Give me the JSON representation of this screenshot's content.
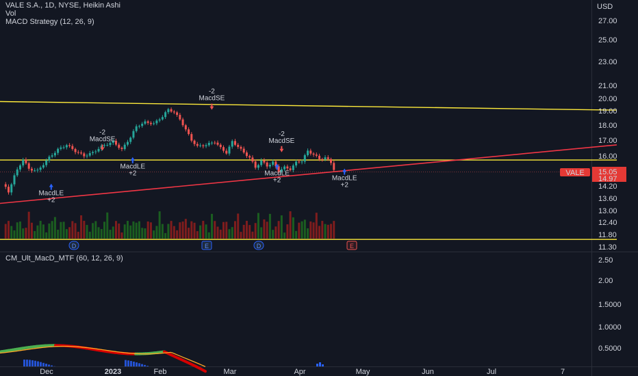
{
  "header": {
    "symbol_line": "VALE S.A., 1D, NYSE, Heikin Ashi",
    "vol_label": "Vol",
    "strategy_label": "MACD Strategy (12, 26, 9)",
    "indicator_label": "CM_Ult_MacD_MTF (60, 12, 26, 9)",
    "currency": "USD"
  },
  "colors": {
    "background": "#131722",
    "up": "#26a69a",
    "down": "#ef5350",
    "trend_yellow": "#ffeb3b",
    "trend_red": "#f23645",
    "vol_up": "#1b5e20",
    "vol_down": "#7f1d1d",
    "macd_up": "#4caf50",
    "macd_down": "#d50000",
    "signal": "#ffa726"
  },
  "chart_data": {
    "type": "candlestick",
    "price_axis_ticks": [
      "27.00",
      "25.00",
      "23.00",
      "21.00",
      "20.00",
      "19.00",
      "18.00",
      "17.00",
      "16.00",
      "14.20",
      "13.60",
      "13.00",
      "12.40",
      "11.80",
      "11.30"
    ],
    "price_labels": {
      "symbol": "VALE",
      "last": "15.05",
      "prev": "14.97"
    },
    "time_axis_ticks": [
      "Dec",
      "2023",
      "Feb",
      "Mar",
      "Apr",
      "May",
      "Jun",
      "Jul",
      "7"
    ],
    "event_markers": [
      "D",
      "E",
      "D",
      "E"
    ],
    "signals": [
      {
        "type": "long",
        "label": "MacdLE",
        "qty": "+2",
        "date": "2022-11-16",
        "price": 14.5
      },
      {
        "type": "short",
        "label": "MacdSE",
        "qty": "-2",
        "date": "2022-12-08",
        "price": 16.5
      },
      {
        "type": "long",
        "label": "MacdLE",
        "qty": "+2",
        "date": "2022-12-21",
        "price": 16.1
      },
      {
        "type": "short",
        "label": "MacdSE",
        "qty": "-2",
        "date": "2023-01-24",
        "price": 19.3
      },
      {
        "type": "long",
        "label": "MacdLE",
        "qty": "+2",
        "date": "2023-02-21",
        "price": 15.7
      },
      {
        "type": "short",
        "label": "MacdSE",
        "qty": "-2",
        "date": "2023-02-23",
        "price": 16.4
      },
      {
        "type": "long",
        "label": "MacdLE",
        "qty": "+2",
        "date": "2023-03-22",
        "price": 15.4
      }
    ],
    "trendlines": [
      {
        "color": "yellow",
        "from": {
          "date": "2022-10-25",
          "price": 19.75
        },
        "to": {
          "date": "2023-07-17",
          "price": 19.05
        }
      },
      {
        "color": "yellow",
        "from": {
          "date": "2022-10-25",
          "price": 15.75
        },
        "to": {
          "date": "2023-07-17",
          "price": 15.75
        }
      },
      {
        "color": "red",
        "from": {
          "date": "2022-10-25",
          "price": 13.35
        },
        "to": {
          "date": "2023-07-17",
          "price": 16.7
        }
      },
      {
        "color": "yellow",
        "from": {
          "date": "2022-10-25",
          "price": 11.6
        },
        "to": {
          "date": "2023-07-17",
          "price": 11.6
        }
      }
    ],
    "indicator_axis_ticks": [
      "2.50",
      "2.00",
      "1.5000",
      "1.0000",
      "0.5000"
    ]
  }
}
